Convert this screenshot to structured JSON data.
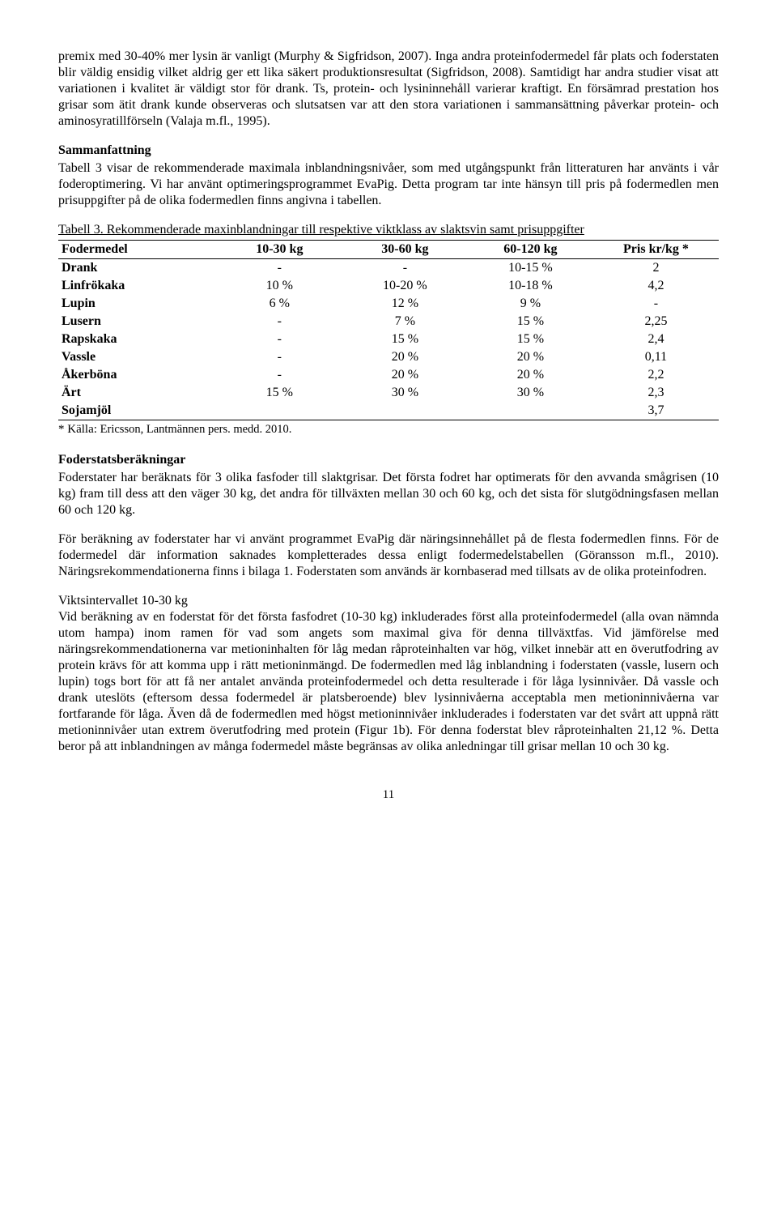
{
  "p1": "premix med 30-40% mer lysin är vanligt (Murphy & Sigfridson, 2007). Inga andra proteinfodermedel får plats och foderstaten blir väldig ensidig vilket aldrig ger ett lika säkert produktionsresultat (Sigfridson, 2008). Samtidigt har andra studier visat att variationen i kvalitet är väldigt stor för drank. Ts, protein- och lysininnehåll varierar kraftigt. En försämrad prestation hos grisar som ätit drank kunde observeras och slutsatsen var att den stora variationen i sammansättning påverkar protein- och aminosyratillförseln (Valaja m.fl., 1995).",
  "h1": "Sammanfattning",
  "p2": "Tabell 3 visar de rekommenderade maximala inblandningsnivåer, som med utgångspunkt från litteraturen har använts i vår foderoptimering. Vi har använt optimeringsprogrammet EvaPig. Detta program tar inte hänsyn till pris på fodermedlen men prisuppgifter på de olika fodermedlen finns angivna i tabellen.",
  "table_caption": "Tabell 3. Rekommenderade maxinblandningar till respektive viktklass av slaktsvin samt prisuppgifter",
  "columns": [
    "Fodermedel",
    "10-30 kg",
    "30-60 kg",
    "60-120 kg",
    "Pris kr/kg *"
  ],
  "rows": [
    [
      "Drank",
      "-",
      "-",
      "10-15 %",
      "2"
    ],
    [
      "Linfrökaka",
      "10 %",
      "10-20 %",
      "10-18 %",
      "4,2"
    ],
    [
      "Lupin",
      "6 %",
      "12 %",
      "9 %",
      "-"
    ],
    [
      "Lusern",
      "-",
      "7 %",
      "15 %",
      "2,25"
    ],
    [
      "Rapskaka",
      "-",
      "15 %",
      "15 %",
      "2,4"
    ],
    [
      "Vassle",
      "-",
      "20 %",
      "20 %",
      "0,11"
    ],
    [
      "Åkerböna",
      "-",
      "20 %",
      "20 %",
      "2,2"
    ],
    [
      "Ärt",
      "15 %",
      "30 %",
      "30 %",
      "2,3"
    ],
    [
      "Sojamjöl",
      "",
      "",
      "",
      "3,7"
    ]
  ],
  "footnote_prefix": "* Källa: ",
  "footnote_small": "Ericsson, Lantmännen pers. medd. 2010.",
  "h2": "Foderstatsberäkningar",
  "p3": "Foderstater har beräknats för 3 olika fasfoder till slaktgrisar. Det första fodret har optimerats för den avvanda smågrisen (10 kg) fram till dess att den väger 30 kg, det andra för tillväxten mellan 30 och 60 kg, och det sista för slutgödningsfasen mellan 60 och 120 kg.",
  "p4": "För beräkning av foderstater har vi använt programmet EvaPig där näringsinnehållet på de flesta fodermedlen finns. För de fodermedel där information saknades kompletterades dessa enligt fodermedelstabellen (Göransson m.fl., 2010). Näringsrekommendationerna finns i bilaga 1. Foderstaten som används är kornbaserad med tillsats av de olika proteinfodren.",
  "p5a": "Viktsintervallet 10-30 kg",
  "p5b": "Vid beräkning av en foderstat för det första fasfodret (10-30 kg) inkluderades först alla proteinfodermedel (alla ovan nämnda utom hampa) inom ramen för vad som angets som maximal giva för denna tillväxtfas. Vid jämförelse med näringsrekommendationerna var metioninhalten för låg medan råproteinhalten var hög, vilket innebär att en överutfodring av protein krävs för att komma upp i rätt metioninmängd. De fodermedlen med låg inblandning i foderstaten (vassle, lusern och lupin) togs bort för att få ner antalet använda proteinfodermedel och detta resulterade i för låga lysinnivåer. Då vassle och drank uteslöts (eftersom dessa fodermedel är platsberoende) blev lysinnivåerna acceptabla men metioninnivåerna var fortfarande för låga. Även då de fodermedlen med högst metioninnivåer inkluderades i foderstaten var det svårt att uppnå rätt metioninnivåer utan extrem överutfodring med protein (Figur 1b). För denna foderstat blev råproteinhalten 21,12 %. Detta beror på att inblandningen av många fodermedel måste begränsas av olika anledningar till grisar mellan 10 och 30 kg.",
  "page_num": "11"
}
